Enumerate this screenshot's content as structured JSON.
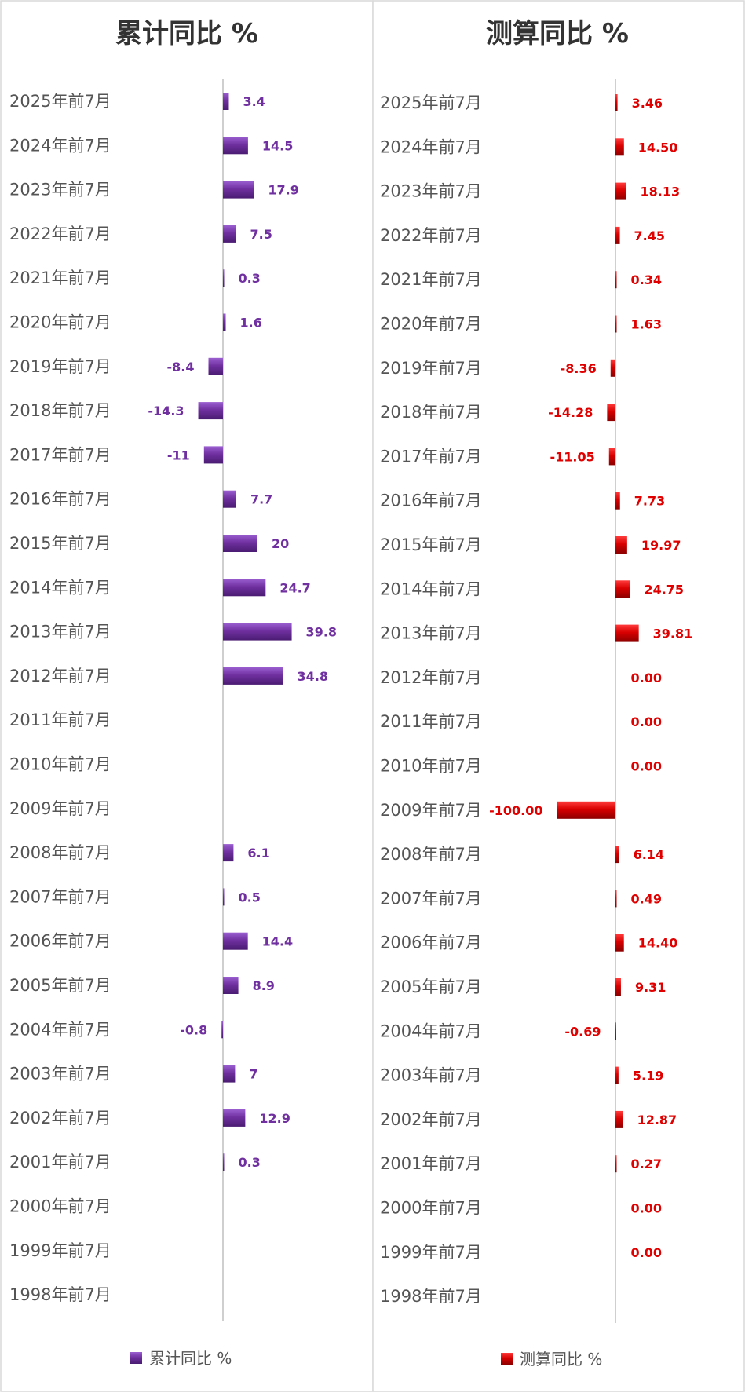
{
  "charts": {
    "left": {
      "color": "#7030a0",
      "color_light": "#8e4cc4",
      "color_dark": "#4f1f7a"
    },
    "right": {
      "color": "#e00000",
      "color_light": "#ff2a2a",
      "color_dark": "#9a0000"
    }
  },
  "chart_data": [
    {
      "type": "bar",
      "orientation": "horizontal",
      "title": "累计同比 %",
      "legend": {
        "label": "累计同比 %",
        "position": "bottom"
      },
      "categories": [
        "2025年前7月",
        "2024年前7月",
        "2023年前7月",
        "2022年前7月",
        "2021年前7月",
        "2020年前7月",
        "2019年前7月",
        "2018年前7月",
        "2017年前7月",
        "2016年前7月",
        "2015年前7月",
        "2014年前7月",
        "2013年前7月",
        "2012年前7月",
        "2011年前7月",
        "2010年前7月",
        "2009年前7月",
        "2008年前7月",
        "2007年前7月",
        "2006年前7月",
        "2005年前7月",
        "2004年前7月",
        "2003年前7月",
        "2002年前7月",
        "2001年前7月",
        "2000年前7月",
        "1999年前7月",
        "1998年前7月"
      ],
      "values": [
        3.4,
        14.5,
        17.9,
        7.5,
        0.3,
        1.6,
        -8.4,
        -14.3,
        -11,
        7.7,
        20,
        24.7,
        39.8,
        34.8,
        null,
        null,
        null,
        6.1,
        0.5,
        14.4,
        8.9,
        -0.8,
        7,
        12.9,
        0.3,
        null,
        null,
        null
      ],
      "labels": [
        "3.4",
        "14.5",
        "17.9",
        "7.5",
        "0.3",
        "1.6",
        "-8.4",
        "-14.3",
        "-11",
        "7.7",
        "20",
        "24.7",
        "39.8",
        "34.8",
        "",
        "",
        "",
        "6.1",
        "0.5",
        "14.4",
        "8.9",
        "-0.8",
        "7",
        "12.9",
        "0.3",
        "",
        "",
        ""
      ],
      "grid": false
    },
    {
      "type": "bar",
      "orientation": "horizontal",
      "title": "测算同比 %",
      "legend": {
        "label": "测算同比 %",
        "position": "bottom"
      },
      "categories": [
        "2025年前7月",
        "2024年前7月",
        "2023年前7月",
        "2022年前7月",
        "2021年前7月",
        "2020年前7月",
        "2019年前7月",
        "2018年前7月",
        "2017年前7月",
        "2016年前7月",
        "2015年前7月",
        "2014年前7月",
        "2013年前7月",
        "2012年前7月",
        "2011年前7月",
        "2010年前7月",
        "2009年前7月",
        "2008年前7月",
        "2007年前7月",
        "2006年前7月",
        "2005年前7月",
        "2004年前7月",
        "2003年前7月",
        "2002年前7月",
        "2001年前7月",
        "2000年前7月",
        "1999年前7月",
        "1998年前7月"
      ],
      "values": [
        3.46,
        14.5,
        18.13,
        7.45,
        0.34,
        1.63,
        -8.36,
        -14.28,
        -11.05,
        7.73,
        19.97,
        24.75,
        39.81,
        0.0,
        0.0,
        0.0,
        -100.0,
        6.14,
        0.49,
        14.4,
        9.31,
        -0.69,
        5.19,
        12.87,
        0.27,
        0.0,
        0.0,
        null
      ],
      "labels": [
        "3.46",
        "14.50",
        "18.13",
        "7.45",
        "0.34",
        "1.63",
        "-8.36",
        "-14.28",
        "-11.05",
        "7.73",
        "19.97",
        "24.75",
        "39.81",
        "0.00",
        "0.00",
        "0.00",
        "-100.00",
        "6.14",
        "0.49",
        "14.40",
        "9.31",
        "-0.69",
        "5.19",
        "12.87",
        "0.27",
        "0.00",
        "0.00",
        ""
      ],
      "grid": false
    }
  ]
}
